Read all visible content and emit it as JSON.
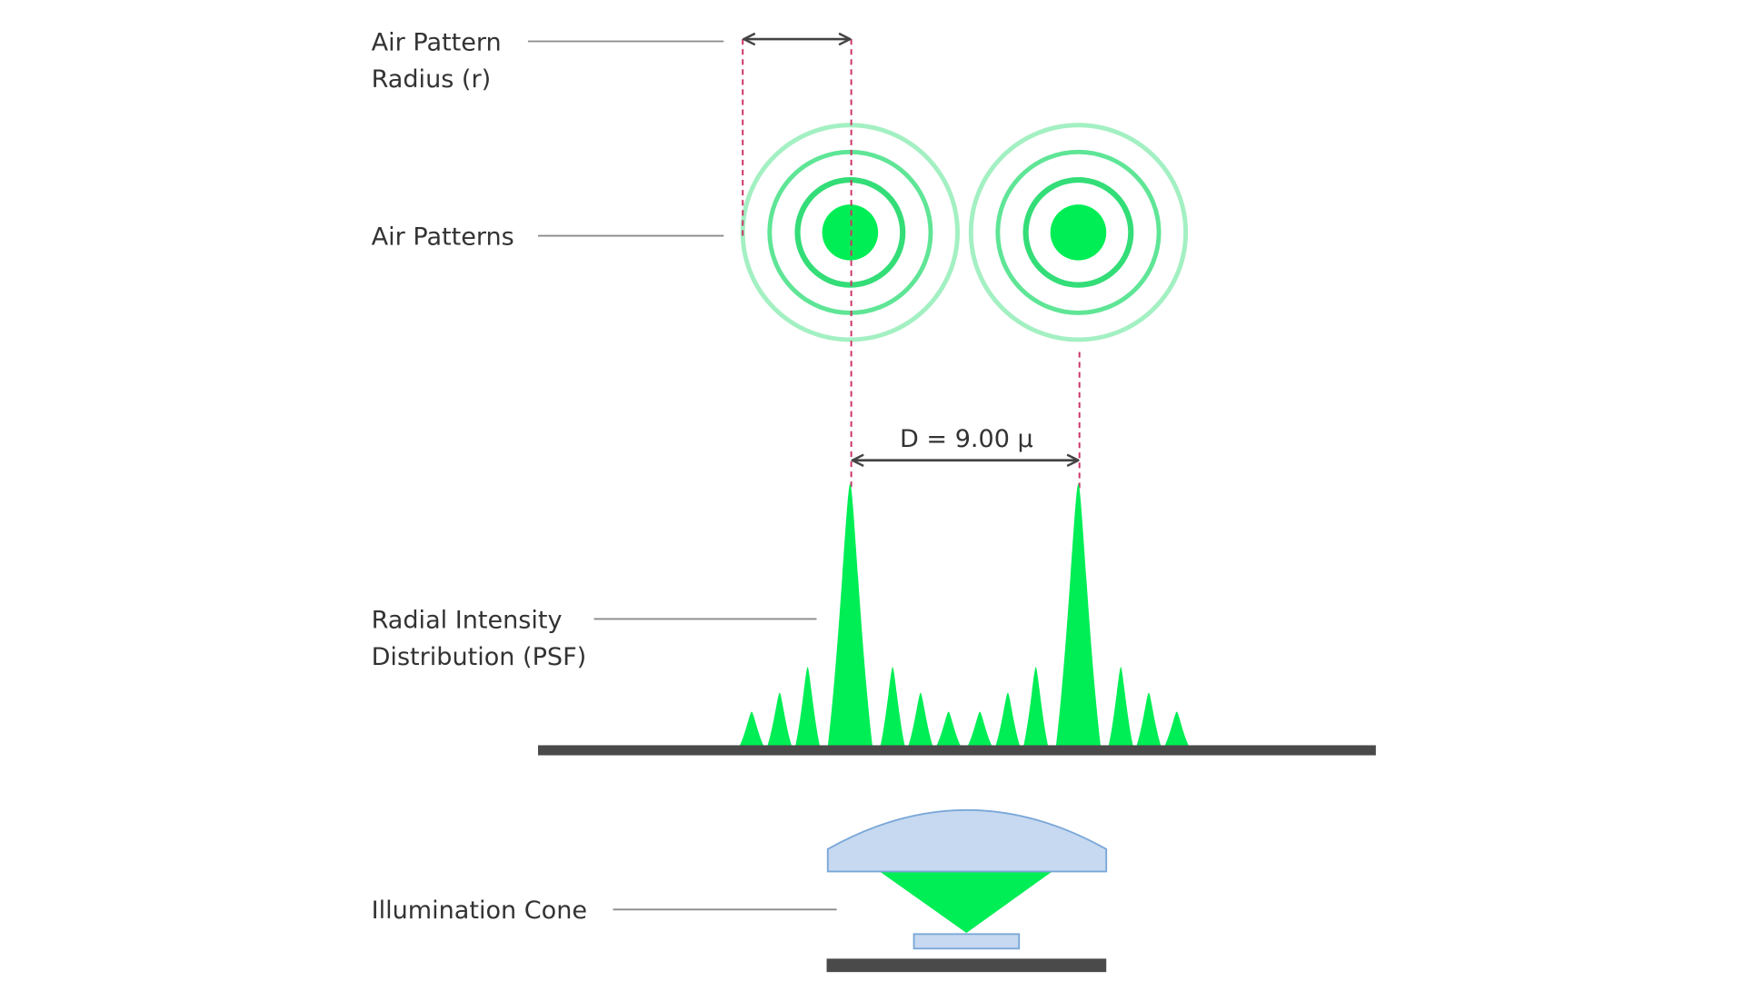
{
  "labels": {
    "air_pattern_radius": [
      "Air Pattern",
      "Radius (r)"
    ],
    "air_patterns": "Air Patterns",
    "radial_intensity": [
      "Radial Intensity",
      "Distribution (PSF)"
    ],
    "illumination_cone": "Illumination Cone"
  },
  "distance_label": "D = 9.00 μ"
}
